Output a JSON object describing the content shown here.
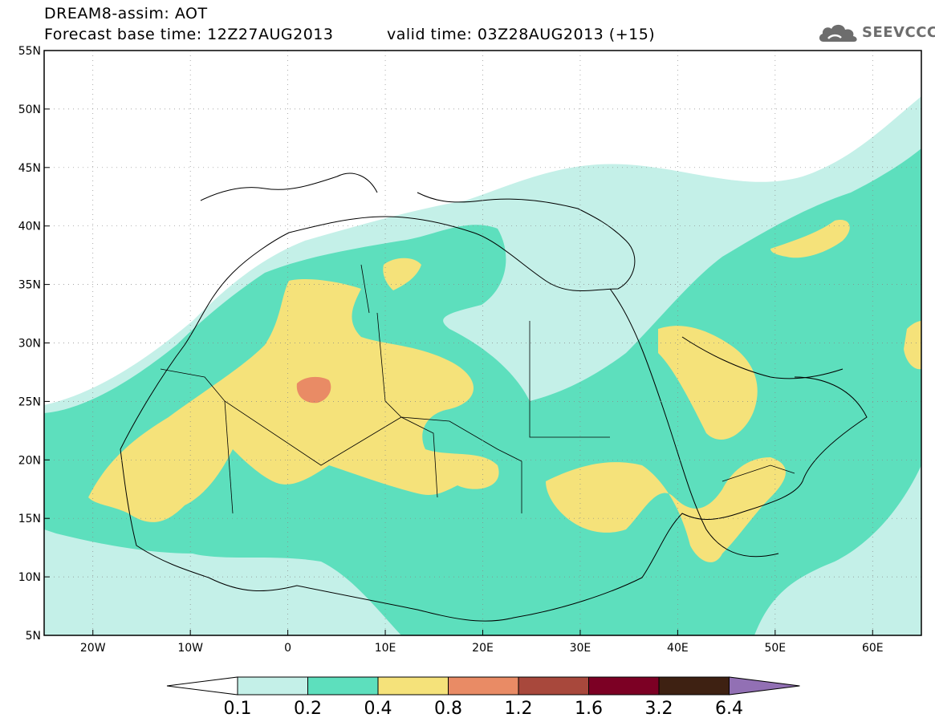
{
  "header": {
    "title": "DREAM8-assim: AOT",
    "forecast_base": "Forecast base time: 12Z27AUG2013",
    "valid_time": "valid time: 03Z28AUG2013 (+15)"
  },
  "logo": {
    "text": "SEEVCCC",
    "icon": "cloud-icon"
  },
  "map": {
    "lon_range": [
      -25,
      65
    ],
    "lat_range": [
      5,
      55
    ],
    "lon_ticks": [
      {
        "value": -20,
        "label": "20W"
      },
      {
        "value": -10,
        "label": "10W"
      },
      {
        "value": 0,
        "label": "0"
      },
      {
        "value": 10,
        "label": "10E"
      },
      {
        "value": 20,
        "label": "20E"
      },
      {
        "value": 30,
        "label": "30E"
      },
      {
        "value": 40,
        "label": "40E"
      },
      {
        "value": 50,
        "label": "50E"
      },
      {
        "value": 60,
        "label": "60E"
      }
    ],
    "lat_ticks": [
      {
        "value": 55,
        "label": "55N"
      },
      {
        "value": 50,
        "label": "50N"
      },
      {
        "value": 45,
        "label": "45N"
      },
      {
        "value": 40,
        "label": "40N"
      },
      {
        "value": 35,
        "label": "35N"
      },
      {
        "value": 30,
        "label": "30N"
      },
      {
        "value": 25,
        "label": "25N"
      },
      {
        "value": 20,
        "label": "20N"
      },
      {
        "value": 15,
        "label": "15N"
      },
      {
        "value": 10,
        "label": "10N"
      },
      {
        "value": 5,
        "label": "5N"
      }
    ],
    "grid": true
  },
  "colorbar": {
    "colors": [
      "#c4f0e8",
      "#5ddfbd",
      "#f5e27a",
      "#e98b65",
      "#a8483c",
      "#7c0024",
      "#3e2112"
    ],
    "under_color": "#ffffff",
    "over_color": "#9270b4",
    "labels": [
      "0.1",
      "0.2",
      "0.4",
      "0.8",
      "1.2",
      "1.6",
      "3.2",
      "6.4"
    ]
  }
}
